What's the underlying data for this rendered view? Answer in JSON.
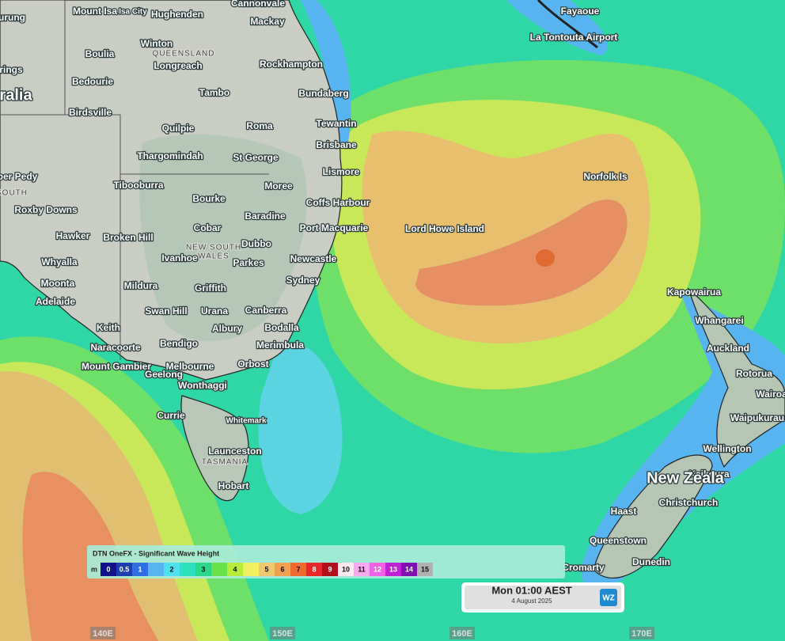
{
  "map": {
    "places": [
      "Mount Isa",
      "Isa City",
      "Hughenden",
      "Cannonvale",
      "Mackay",
      "urung",
      "Winton",
      "QUEENSLAND",
      "Boulia",
      "Longreach",
      "rings",
      "Rockhampton",
      "Bedourie",
      "Tambo",
      "Bundaberg",
      "ralia",
      "Birdsville",
      "Tewantin",
      "Roma",
      "Quilpie",
      "Brisbane",
      "Thargomindah",
      "St George",
      "Lismore",
      "ber Pedy",
      "Tibooburra",
      "Moree",
      "SOUTH",
      "Bourke",
      "Coffs Harbour",
      "Roxby Downs",
      "Baradine",
      "Cobar",
      "Port Macquarie",
      "Hawker",
      "Broken Hill",
      "Dubbo",
      "NEW SOUTH",
      "WALES",
      "Ivanhoe",
      "Parkes",
      "Newcastle",
      "Whyalla",
      "Sydney",
      "Moonta",
      "Mildura",
      "Griffith",
      "Adelaide",
      "Swan Hill",
      "Urana",
      "Canberra",
      "Keith",
      "Albury",
      "Bodalla",
      "Bendigo",
      "Naracoorte",
      "Merimbula",
      "Orbost",
      "Mount Gambier",
      "Melbourne",
      "Geelong",
      "Wonthaggi",
      "Currie",
      "Whitemark",
      "Launceston",
      "TASMANIA",
      "Hobart",
      "Fayaoue",
      "La Tontouta Airport",
      "Norfolk Is",
      "Lord Howe Island",
      "Kapowairua",
      "Whangarei",
      "Auckland",
      "Rotorua",
      "Wairoa",
      "Waipukurau",
      "Wellington",
      "Kaikoura",
      "New Zeala",
      "Christchurch",
      "Haast",
      "Queenstown",
      "Dunedin",
      "Cromarty"
    ],
    "longitudes": [
      "140E",
      "150E",
      "160E",
      "170E"
    ]
  },
  "legend": {
    "title": "DTN OneFX - Significant Wave Height",
    "unit": "m",
    "items": [
      {
        "label": "0",
        "color": "#12128a"
      },
      {
        "label": "0.5",
        "color": "#1f3fb0"
      },
      {
        "label": "1",
        "color": "#2f6fe0"
      },
      {
        "label": null,
        "color": "#58b4f0"
      },
      {
        "label": "2",
        "color": "#4fe0f0"
      },
      {
        "label": null,
        "color": "#2fe0c0"
      },
      {
        "label": "3",
        "color": "#2ad88a"
      },
      {
        "label": null,
        "color": "#6ae04a"
      },
      {
        "label": "4",
        "color": "#b8ec3a"
      },
      {
        "label": null,
        "color": "#f0f060"
      },
      {
        "label": "5",
        "color": "#f0c870"
      },
      {
        "label": "6",
        "color": "#f0a050"
      },
      {
        "label": "7",
        "color": "#f06a30"
      },
      {
        "label": "8",
        "color": "#e82828"
      },
      {
        "label": "9",
        "color": "#b0101c"
      },
      {
        "label": "10",
        "color": "#fbe8f0"
      },
      {
        "label": "11",
        "color": "#f8a8f0"
      },
      {
        "label": "12",
        "color": "#f060e8"
      },
      {
        "label": "13",
        "color": "#c020d8"
      },
      {
        "label": "14",
        "color": "#8010b0"
      },
      {
        "label": "15",
        "color": "#b0b0b0"
      }
    ]
  },
  "time": {
    "label": "Mon 01:00 AEST",
    "date": "4 August 2025",
    "logo": "WZ"
  }
}
